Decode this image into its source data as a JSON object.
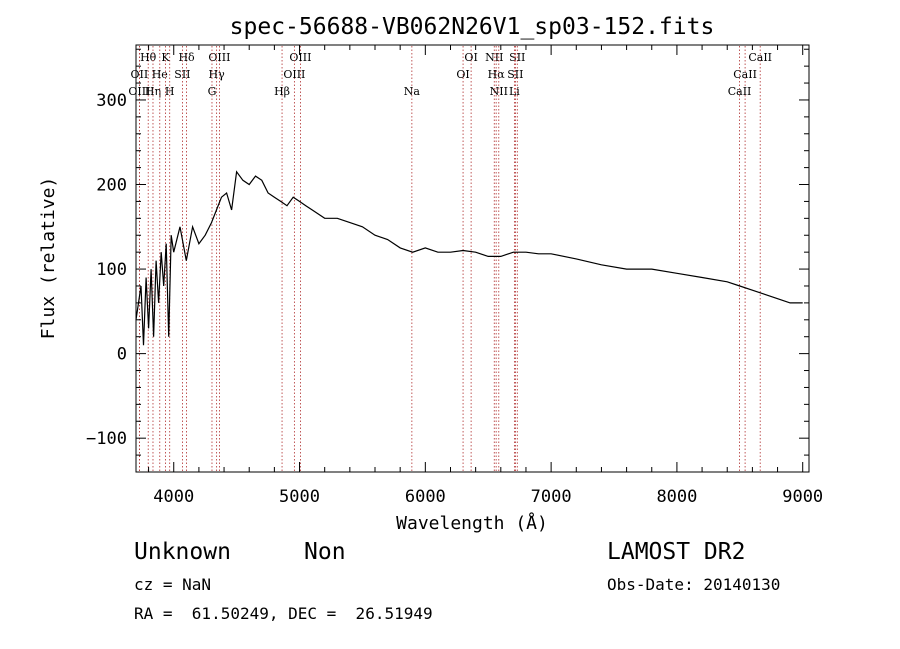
{
  "chart_data": {
    "type": "line",
    "title": "spec-56688-VB062N26V1_sp03-152.fits",
    "xlabel": "Wavelength (Å)",
    "ylabel": "Flux (relative)",
    "xlim": [
      3700,
      9050
    ],
    "ylim": [
      -140,
      365
    ],
    "xticks": [
      4000,
      5000,
      6000,
      7000,
      8000,
      9000
    ],
    "yticks": [
      -100,
      0,
      100,
      200,
      300
    ],
    "grid": false,
    "line_color": "#000000",
    "marker_color": "#b03030",
    "series": [
      {
        "x": [
          3700,
          3720,
          3740,
          3760,
          3780,
          3800,
          3820,
          3840,
          3860,
          3880,
          3900,
          3920,
          3940,
          3960,
          3980,
          4000,
          4050,
          4100,
          4150,
          4200,
          4250,
          4300,
          4340,
          4380,
          4420,
          4460,
          4500,
          4550,
          4600,
          4650,
          4700,
          4750,
          4800,
          4850,
          4900,
          4950,
          5000,
          5050,
          5100,
          5200,
          5300,
          5400,
          5500,
          5600,
          5700,
          5800,
          5900,
          6000,
          6100,
          6200,
          6300,
          6400,
          6500,
          6600,
          6700,
          6800,
          6900,
          7000,
          7200,
          7400,
          7600,
          7800,
          8000,
          8200,
          8400,
          8500,
          8600,
          8700,
          8800,
          8900,
          9000
        ],
        "y": [
          40,
          60,
          80,
          10,
          90,
          30,
          100,
          20,
          110,
          60,
          120,
          80,
          130,
          20,
          140,
          120,
          150,
          110,
          150,
          130,
          140,
          155,
          170,
          185,
          190,
          170,
          215,
          205,
          200,
          210,
          205,
          190,
          185,
          180,
          175,
          185,
          180,
          175,
          170,
          160,
          160,
          155,
          150,
          140,
          135,
          125,
          120,
          125,
          120,
          120,
          122,
          120,
          115,
          115,
          120,
          120,
          118,
          118,
          112,
          105,
          100,
          100,
          95,
          90,
          85,
          80,
          75,
          70,
          65,
          60,
          60
        ]
      }
    ],
    "line_markers": [
      {
        "label": "Hθ",
        "x": 3797,
        "row": 0
      },
      {
        "label": "OII",
        "x": 3727,
        "row": 1
      },
      {
        "label": "OIII",
        "x": 3727,
        "row": 2
      },
      {
        "label": "Hη",
        "x": 3835,
        "row": 2
      },
      {
        "label": "He",
        "x": 3889,
        "row": 1
      },
      {
        "label": "K",
        "x": 3934,
        "row": 0
      },
      {
        "label": "H",
        "x": 3968,
        "row": 2
      },
      {
        "label": "SII",
        "x": 4069,
        "row": 1
      },
      {
        "label": "Hδ",
        "x": 4102,
        "row": 0
      },
      {
        "label": "OIII",
        "x": 4363,
        "row": 0
      },
      {
        "label": "Hγ",
        "x": 4341,
        "row": 1
      },
      {
        "label": "G",
        "x": 4304,
        "row": 2
      },
      {
        "label": "Hβ",
        "x": 4861,
        "row": 2
      },
      {
        "label": "OIII",
        "x": 5007,
        "row": 0
      },
      {
        "label": "OIII",
        "x": 4959,
        "row": 1
      },
      {
        "label": "Na",
        "x": 5893,
        "row": 2
      },
      {
        "label": "OI",
        "x": 6364,
        "row": 0
      },
      {
        "label": "OI",
        "x": 6300,
        "row": 1
      },
      {
        "label": "NII",
        "x": 6548,
        "row": 0
      },
      {
        "label": "SII",
        "x": 6731,
        "row": 0
      },
      {
        "label": "Hα",
        "x": 6563,
        "row": 1
      },
      {
        "label": "SII",
        "x": 6716,
        "row": 1
      },
      {
        "label": "NII",
        "x": 6584,
        "row": 2
      },
      {
        "label": "Li",
        "x": 6708,
        "row": 2
      },
      {
        "label": "CaII",
        "x": 8662,
        "row": 0
      },
      {
        "label": "CaII",
        "x": 8542,
        "row": 1
      },
      {
        "label": "CaII",
        "x": 8498,
        "row": 2
      }
    ]
  },
  "info": {
    "object_class": "Unknown",
    "object_subclass": "Non",
    "survey": "LAMOST DR2",
    "redshift": "cz = NaN",
    "obs_date": "Obs-Date: 20140130",
    "coords": "RA =  61.50249, DEC =  26.51949"
  }
}
